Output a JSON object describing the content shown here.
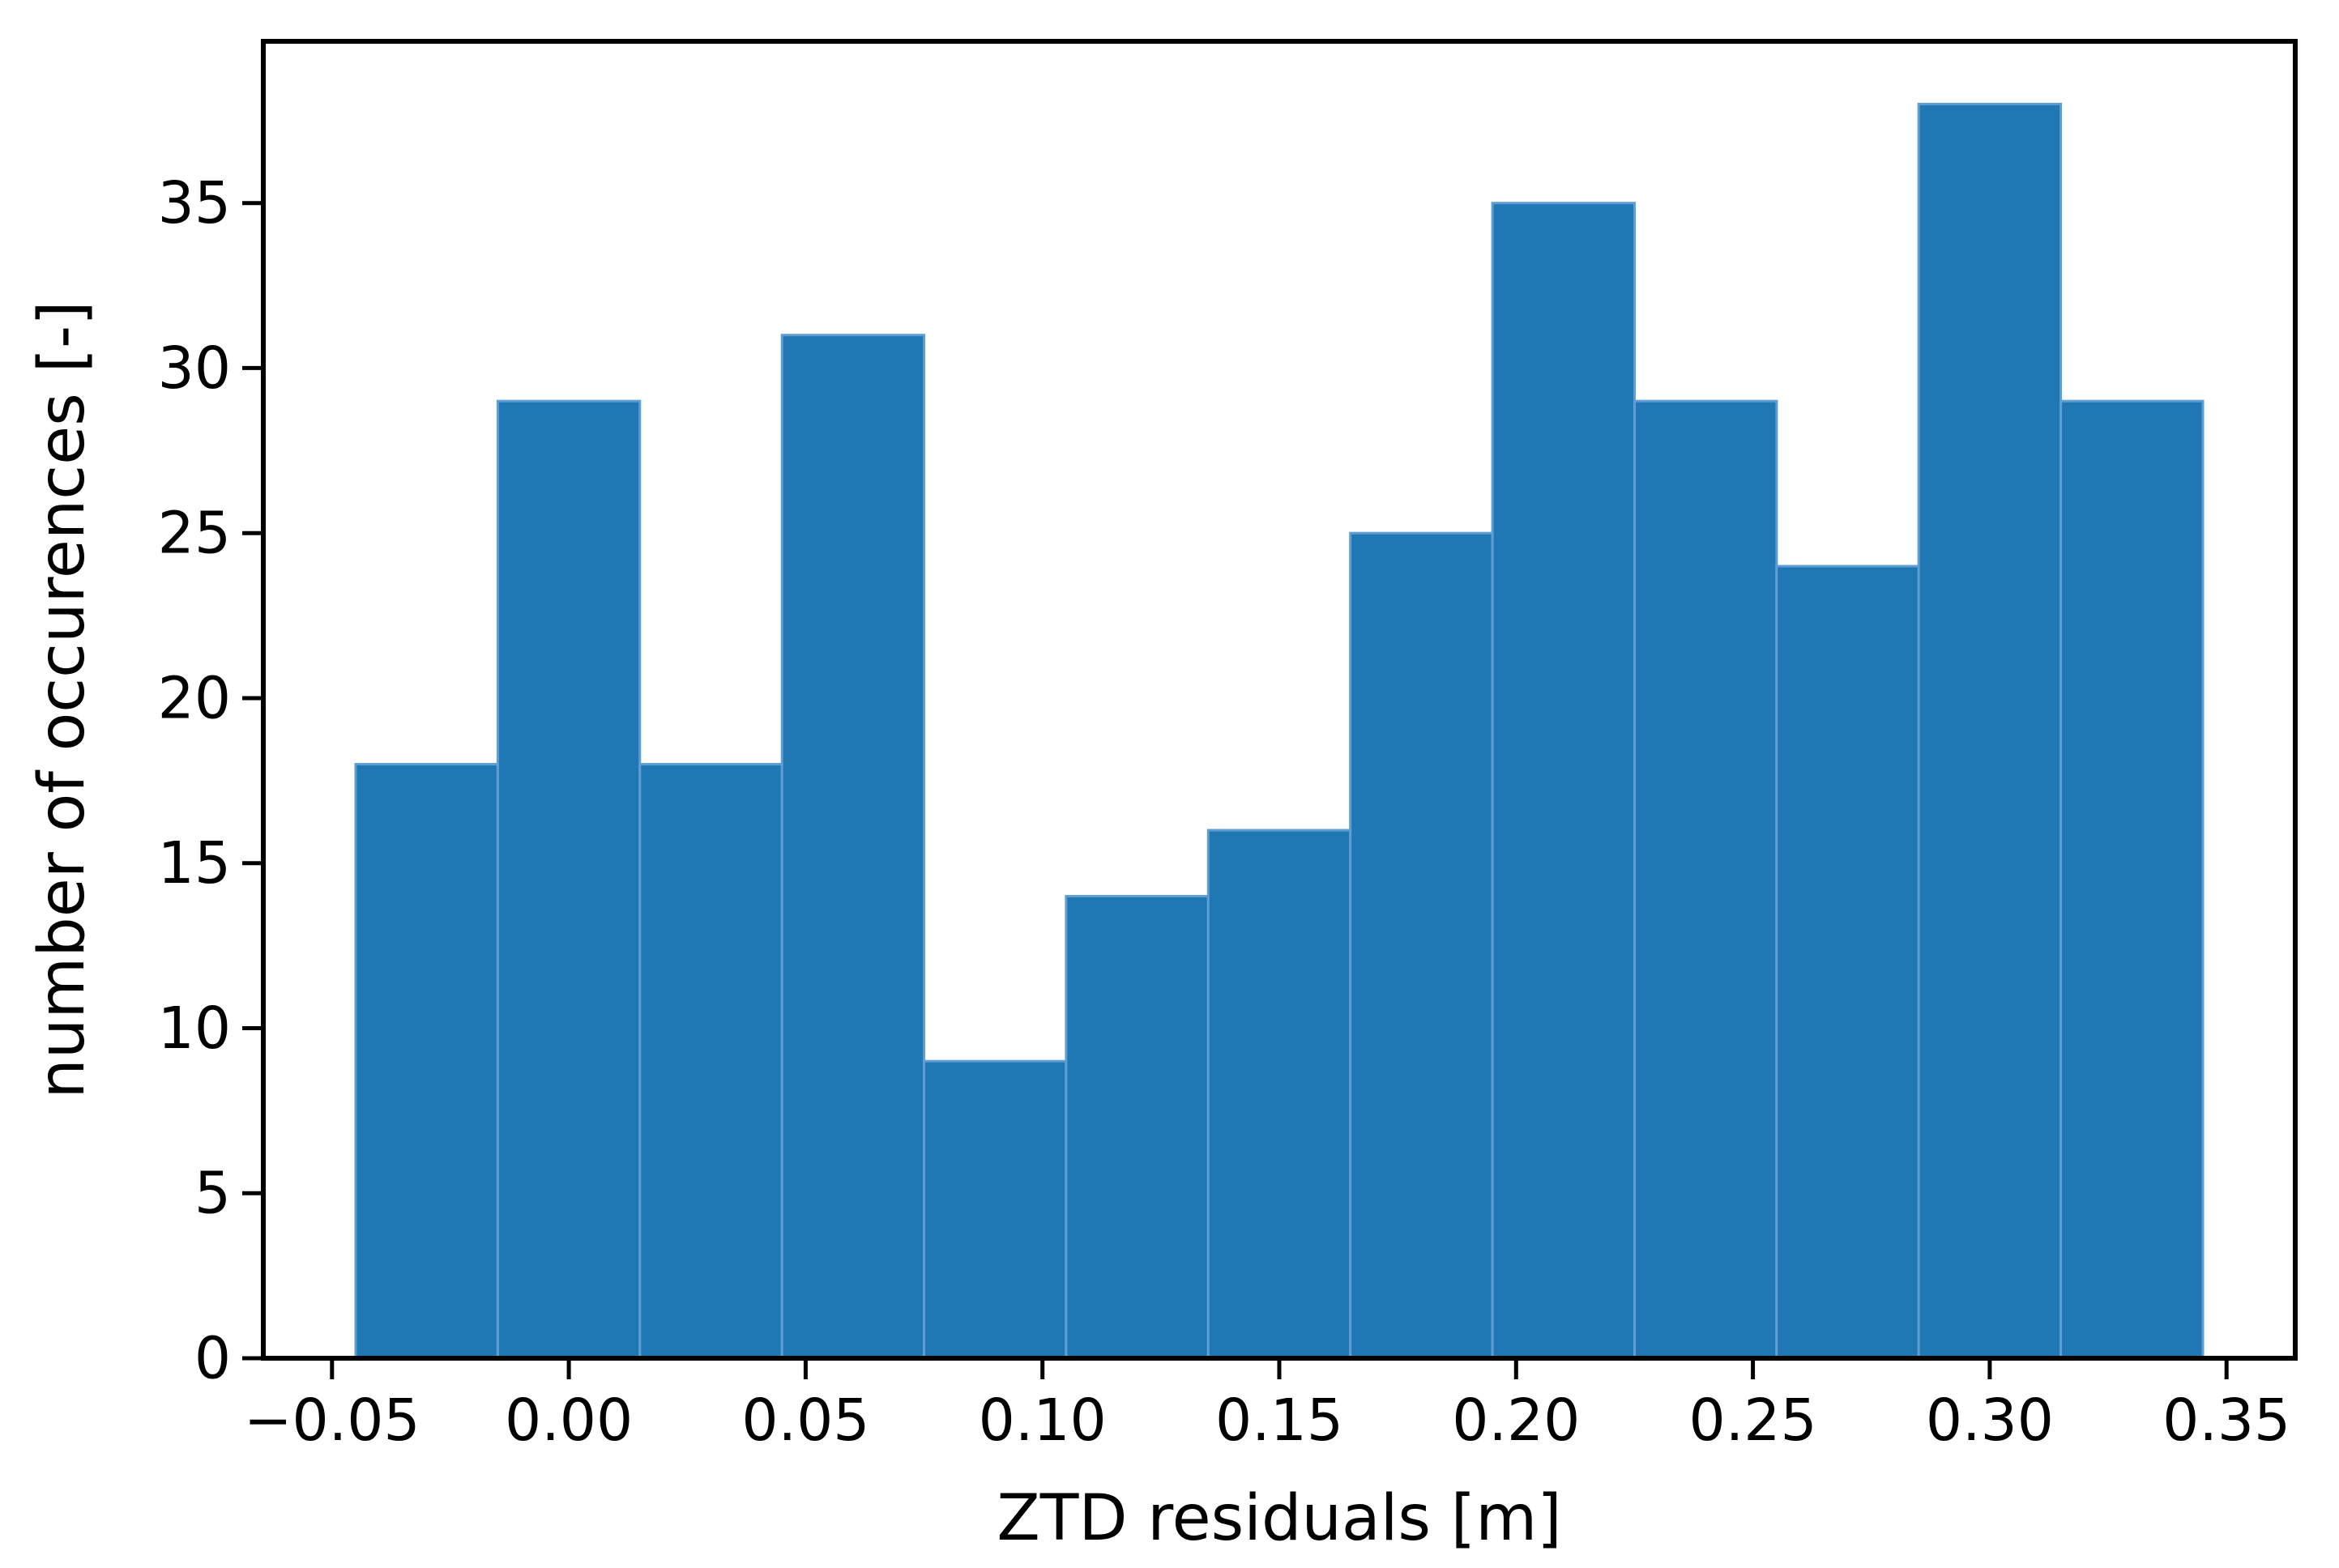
{
  "figure": {
    "background": "#ffffff"
  },
  "chart_data": {
    "type": "bar",
    "subtype": "histogram",
    "title": "",
    "xlabel": "ZTD residuals [m]",
    "ylabel": "number of occurences [-]",
    "bin_edges": [
      -0.045,
      -0.015,
      0.015,
      0.045,
      0.075,
      0.105,
      0.135,
      0.165,
      0.195,
      0.225,
      0.255,
      0.285,
      0.315,
      0.345
    ],
    "bin_width": 0.03,
    "values": [
      18,
      29,
      18,
      31,
      9,
      14,
      16,
      25,
      35,
      29,
      24,
      38,
      29
    ],
    "x_ticks": [
      {
        "value": -0.05,
        "label": "−0.05"
      },
      {
        "value": 0.0,
        "label": "0.00"
      },
      {
        "value": 0.05,
        "label": "0.05"
      },
      {
        "value": 0.1,
        "label": "0.10"
      },
      {
        "value": 0.15,
        "label": "0.15"
      },
      {
        "value": 0.2,
        "label": "0.20"
      },
      {
        "value": 0.25,
        "label": "0.25"
      },
      {
        "value": 0.3,
        "label": "0.30"
      },
      {
        "value": 0.35,
        "label": "0.35"
      }
    ],
    "y_ticks": [
      {
        "value": 0,
        "label": "0"
      },
      {
        "value": 5,
        "label": "5"
      },
      {
        "value": 10,
        "label": "10"
      },
      {
        "value": 15,
        "label": "15"
      },
      {
        "value": 20,
        "label": "20"
      },
      {
        "value": 25,
        "label": "25"
      },
      {
        "value": 30,
        "label": "30"
      },
      {
        "value": 35,
        "label": "35"
      }
    ],
    "xlim": [
      -0.0645,
      0.3645
    ],
    "ylim": [
      0,
      39.9
    ],
    "grid": false,
    "legend": "none",
    "colors": {
      "bar_fill": "#1f77b4",
      "bar_edge": "#5f9ed2",
      "spine": "#000000",
      "tick": "#000000",
      "text": "#000000",
      "background": "#ffffff"
    }
  }
}
